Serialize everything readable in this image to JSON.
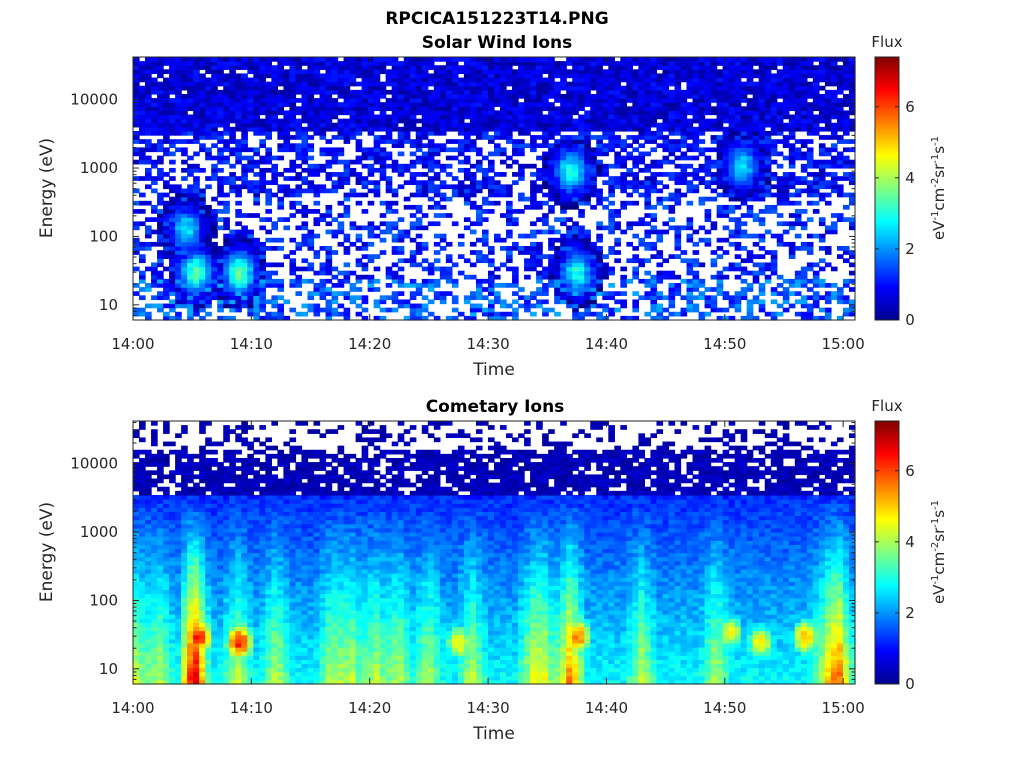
{
  "figure_title": "RPCICA151223T14.PNG",
  "chart_data": [
    {
      "type": "heatmap",
      "title": "Solar Wind Ions",
      "xlabel": "Time",
      "ylabel": "Energy (eV)",
      "x_range": [
        "14:00",
        "15:01"
      ],
      "x_ticks": [
        "14:00",
        "14:10",
        "14:20",
        "14:30",
        "14:40",
        "14:50",
        "15:00"
      ],
      "y_scale": "log",
      "y_range": [
        6,
        42000
      ],
      "y_ticks": [
        "10",
        "100",
        "1000",
        "10000"
      ],
      "colorbar": {
        "title": "Flux",
        "label": "eV-1cm-2sr-1s-1",
        "range": [
          0,
          7.4
        ],
        "ticks": [
          "0",
          "2",
          "4",
          "6"
        ],
        "colormap": "jet"
      },
      "pattern": "solar_wind",
      "hotspots": [
        {
          "t": 5.3,
          "e": 30,
          "v": 3.4
        },
        {
          "t": 9.0,
          "e": 30,
          "v": 3.5
        },
        {
          "t": 37.0,
          "e": 900,
          "v": 3.0
        },
        {
          "t": 37.5,
          "e": 30,
          "v": 3.0
        },
        {
          "t": 51.5,
          "e": 1100,
          "v": 2.6
        },
        {
          "t": 4.5,
          "e": 130,
          "v": 2.6
        }
      ],
      "grid": false
    },
    {
      "type": "heatmap",
      "title": "Cometary Ions",
      "xlabel": "Time",
      "ylabel": "Energy (eV)",
      "x_range": [
        "14:00",
        "15:01"
      ],
      "x_ticks": [
        "14:00",
        "14:10",
        "14:20",
        "14:30",
        "14:40",
        "14:50",
        "15:00"
      ],
      "y_scale": "log",
      "y_range": [
        6,
        42000
      ],
      "y_ticks": [
        "10",
        "100",
        "1000",
        "10000"
      ],
      "colorbar": {
        "title": "Flux",
        "label": "eV-1cm-2sr-1s-1",
        "range": [
          0,
          7.4
        ],
        "ticks": [
          "0",
          "2",
          "4",
          "6"
        ],
        "colormap": "jet"
      },
      "pattern": "cometary",
      "hotspots": [
        {
          "t": 5.5,
          "e": 30,
          "v": 6.4
        },
        {
          "t": 9.0,
          "e": 25,
          "v": 6.3
        },
        {
          "t": 27.5,
          "e": 25,
          "v": 4.8
        },
        {
          "t": 37.6,
          "e": 30,
          "v": 5.6
        },
        {
          "t": 53.0,
          "e": 25,
          "v": 4.8
        },
        {
          "t": 56.8,
          "e": 30,
          "v": 5.3
        },
        {
          "t": 50.5,
          "e": 35,
          "v": 4.6
        }
      ],
      "grid": false
    }
  ]
}
